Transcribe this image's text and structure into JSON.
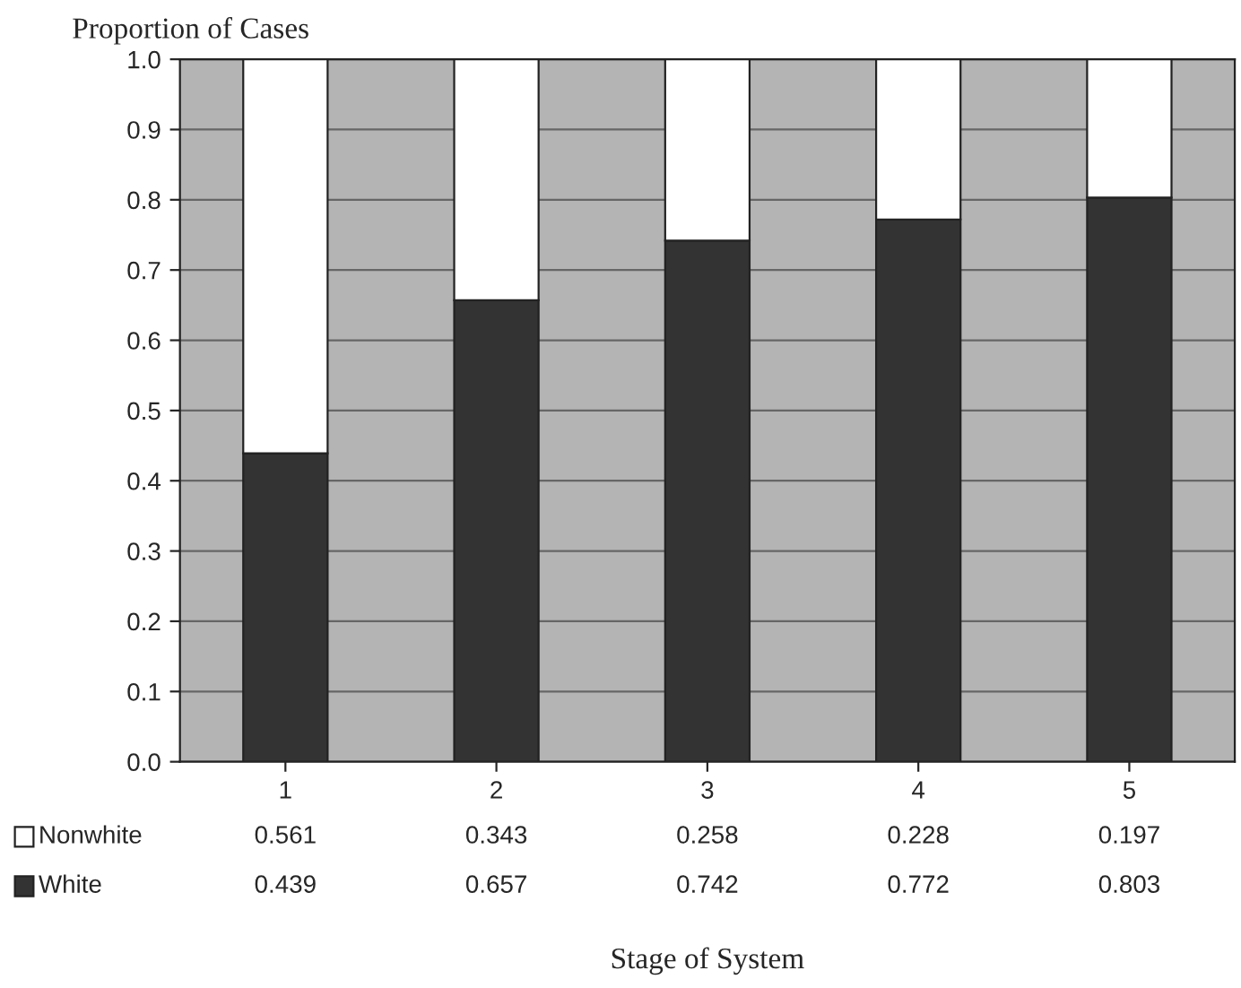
{
  "chart_data": {
    "type": "bar",
    "stacked": true,
    "ylabel": "Proportion of Cases",
    "xlabel": "Stage of System",
    "categories": [
      "1",
      "2",
      "3",
      "4",
      "5"
    ],
    "series": [
      {
        "name": "White",
        "color": "#333333",
        "values": [
          0.439,
          0.657,
          0.742,
          0.772,
          0.803
        ]
      },
      {
        "name": "Nonwhite",
        "color": "#ffffff",
        "values": [
          0.561,
          0.343,
          0.258,
          0.228,
          0.197
        ]
      }
    ],
    "ylim": [
      0,
      1.0
    ],
    "yticks": [
      "0.0",
      0.1,
      0.2,
      0.3,
      0.4,
      0.5,
      0.6,
      0.7,
      0.8,
      0.9,
      "1.0"
    ],
    "data_labels": true,
    "grid": "y",
    "legend": "bottom left"
  }
}
